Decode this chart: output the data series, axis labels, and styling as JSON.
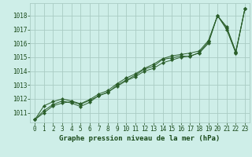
{
  "title": "Graphe pression niveau de la mer (hPa)",
  "bg_color": "#ceeee8",
  "grid_color": "#aaccC4",
  "line_color": "#2a5e2a",
  "marker_color": "#2a5e2a",
  "text_color": "#1a4a1a",
  "xlim": [
    -0.5,
    23.5
  ],
  "ylim": [
    1010.3,
    1018.9
  ],
  "yticks": [
    1011,
    1012,
    1013,
    1014,
    1015,
    1016,
    1017,
    1018
  ],
  "xticks": [
    0,
    1,
    2,
    3,
    4,
    5,
    6,
    7,
    8,
    9,
    10,
    11,
    12,
    13,
    14,
    15,
    16,
    17,
    18,
    19,
    20,
    21,
    22,
    23
  ],
  "series": [
    [
      1010.5,
      1011.0,
      1011.5,
      1011.7,
      1011.8,
      1011.6,
      1011.9,
      1012.2,
      1012.5,
      1012.9,
      1013.3,
      1013.6,
      1014.0,
      1014.2,
      1014.6,
      1014.8,
      1015.0,
      1015.1,
      1015.3,
      1016.0,
      1018.0,
      1017.0,
      1015.3,
      1018.5
    ],
    [
      1010.5,
      1011.5,
      1011.8,
      1012.0,
      1011.85,
      1011.65,
      1011.95,
      1012.35,
      1012.6,
      1013.1,
      1013.5,
      1013.8,
      1014.2,
      1014.5,
      1014.9,
      1015.1,
      1015.2,
      1015.3,
      1015.45,
      1016.2,
      1018.0,
      1017.2,
      1015.4,
      1018.5
    ],
    [
      1010.5,
      1011.15,
      1011.6,
      1011.85,
      1011.7,
      1011.45,
      1011.75,
      1012.25,
      1012.45,
      1013.0,
      1013.35,
      1013.7,
      1014.15,
      1014.35,
      1014.85,
      1014.95,
      1015.1,
      1015.05,
      1015.35,
      1016.1,
      1018.0,
      1017.1,
      1015.35,
      1018.5
    ]
  ]
}
